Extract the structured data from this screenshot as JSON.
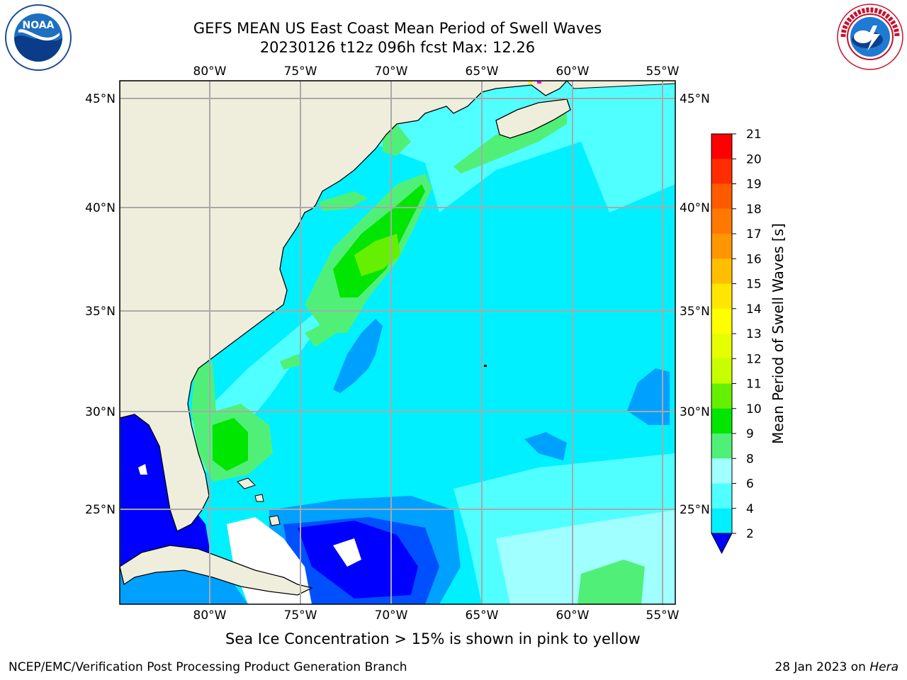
{
  "title": {
    "line1": "GEFS MEAN US East Coast Mean Period of Swell Waves",
    "line2": "20230126 t12z 096h fcst   Max: 12.26"
  },
  "logos": {
    "noaa": {
      "text": "NOAA",
      "ring_text": "NATIONAL OCEANIC AND ATMOSPHERIC ADMINISTRATION · U.S. DEPARTMENT OF COMMERCE"
    },
    "nws": {
      "ring_text": "NATIONAL WEATHER SERVICE"
    }
  },
  "map": {
    "lon_labels": [
      "80°W",
      "75°W",
      "70°W",
      "65°W",
      "60°W",
      "55°W"
    ],
    "lat_labels": [
      "45°N",
      "40°N",
      "35°N",
      "30°N",
      "25°N"
    ],
    "colors": {
      "land": "#efeedc",
      "coast": "#000000",
      "grid": "#a9a9a9"
    }
  },
  "colorbar": {
    "label": "Mean Period of Swell Waves [s]",
    "ticks": [
      "21",
      "20",
      "19",
      "18",
      "17",
      "16",
      "15",
      "14",
      "13",
      "12",
      "11",
      "10",
      "9",
      "8",
      "6",
      "4",
      "2"
    ],
    "colors": [
      "#ff0000",
      "#ff2d00",
      "#ff5a00",
      "#ff7800",
      "#ff9600",
      "#ffbf00",
      "#ffe600",
      "#ffff00",
      "#e6ff00",
      "#c8ff00",
      "#64f000",
      "#00e600",
      "#50f078",
      "#a0ffff",
      "#50ffff",
      "#00f0ff",
      "#00a0ff",
      "#0050ff",
      "#0000ff"
    ]
  },
  "footer": {
    "note": "Sea Ice Concentration > 15% is shown in pink to yellow",
    "left": "NCEP/EMC/Verification Post Processing Product Generation Branch",
    "right_date": "28 Jan 2023 on ",
    "right_host": "Hera"
  }
}
